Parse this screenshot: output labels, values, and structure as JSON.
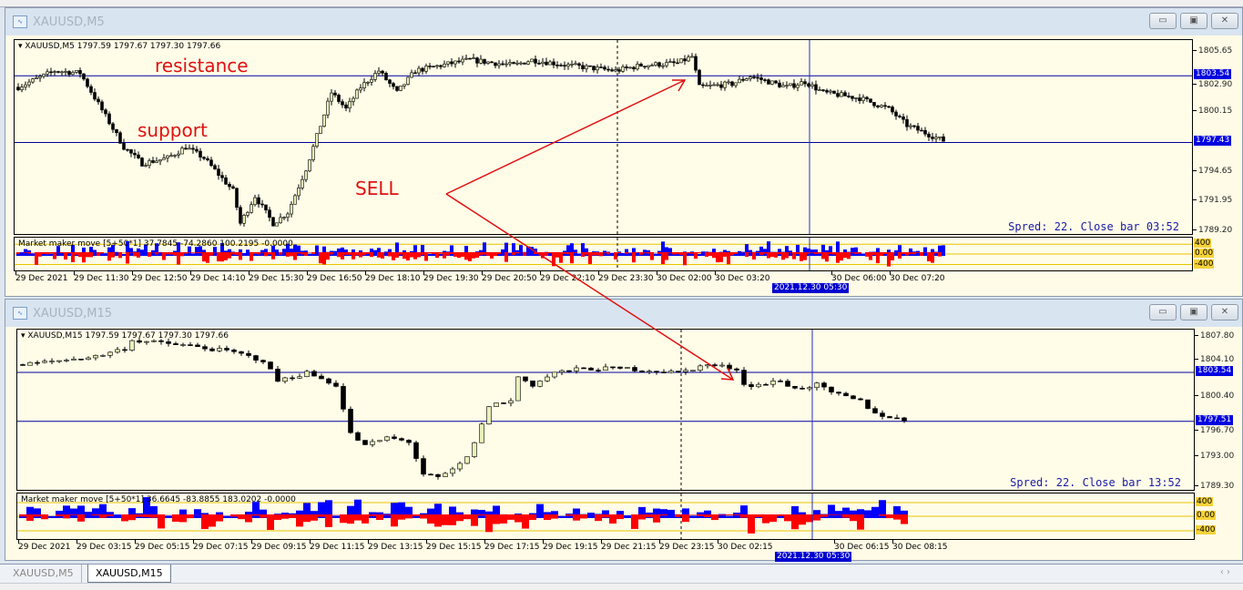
{
  "windows": [
    {
      "title": "XAUUSD,M5",
      "header": "XAUUSD,M5  1797.59 1797.67 1797.30 1797.66",
      "price_ticks": [
        "1805.65",
        "1802.90",
        "1800.15",
        "1794.65",
        "1791.95",
        "1789.20"
      ],
      "lines": [
        {
          "price": 1803.54,
          "label": "1803.54"
        },
        {
          "price": 1797.43,
          "label": "1797.43"
        }
      ],
      "spread_text": "Spred: 22. Close bar 03:52",
      "indicator_text": "Market maker move [5+50*1] 37.7845 -74.2860 100.2195 -0.0000",
      "indicator_levels": [
        "400",
        "0.00",
        "-400"
      ],
      "time_labels": [
        "29 Dec 2021",
        "29 Dec 11:30",
        "29 Dec 12:50",
        "29 Dec 14:10",
        "29 Dec 15:30",
        "29 Dec 16:50",
        "29 Dec 18:10",
        "29 Dec 19:30",
        "29 Dec 20:50",
        "29 Dec 22:10",
        "29 Dec 23:30",
        "30 Dec 02:00",
        "30 Dec 03:20",
        "30 Dec 06:00",
        "30 Dec 07:20"
      ],
      "crosshair_label": "2021.12.30 05:30"
    },
    {
      "title": "XAUUSD,M15",
      "header": "XAUUSD,M15  1797.59 1797.67 1797.30 1797.66",
      "price_ticks": [
        "1807.80",
        "1804.10",
        "1800.40",
        "1796.70",
        "1793.00",
        "1789.30"
      ],
      "lines": [
        {
          "price": 1803.54,
          "label": "1803.54"
        },
        {
          "price": 1797.51,
          "label": "1797.51"
        }
      ],
      "spread_text": "Spred: 22. Close bar 13:52",
      "indicator_text": "Market maker move [5+50*1] 36.6645 -83.8855 183.0202 -0.0000",
      "indicator_levels": [
        "400",
        "0.00",
        "-400"
      ],
      "time_labels": [
        "29 Dec 2021",
        "29 Dec 03:15",
        "29 Dec 05:15",
        "29 Dec 07:15",
        "29 Dec 09:15",
        "29 Dec 11:15",
        "29 Dec 13:15",
        "29 Dec 15:15",
        "29 Dec 17:15",
        "29 Dec 19:15",
        "29 Dec 21:15",
        "29 Dec 23:15",
        "30 Dec 02:15",
        "30 Dec 06:15",
        "30 Dec 08:15"
      ],
      "crosshair_label": "2021.12.30 05:30"
    }
  ],
  "annotations": {
    "resistance": "resistance",
    "support": "support",
    "sell": "SELL",
    "color": "#e01010"
  },
  "tabs": [
    {
      "label": "XAUUSD,M5",
      "active": false
    },
    {
      "label": "XAUUSD,M15",
      "active": true
    }
  ],
  "colors": {
    "background": "#fffce8",
    "level_line": "#0000a0",
    "bear_candle": "#000000",
    "bull_candle": "#e9efb8",
    "indicator_up": "#0000ff",
    "indicator_down": "#ff0000",
    "indicator_level": "#e8c400"
  },
  "chart_data": [
    {
      "type": "candlestick",
      "symbol": "XAUUSD",
      "timeframe": "M5",
      "ylim": [
        1789.2,
        1805.65
      ],
      "close_path": [
        [
          0,
          1802.5
        ],
        [
          10,
          1804
        ],
        [
          17,
          1803.8
        ],
        [
          29,
          1797
        ],
        [
          34,
          1795.5
        ],
        [
          41,
          1796
        ],
        [
          46,
          1797
        ],
        [
          51,
          1796
        ],
        [
          59,
          1793
        ],
        [
          61,
          1790
        ],
        [
          65,
          1792.5
        ],
        [
          70,
          1790
        ],
        [
          74,
          1791
        ],
        [
          79,
          1795
        ],
        [
          83,
          1799
        ],
        [
          86,
          1802
        ],
        [
          90,
          1800.5
        ],
        [
          94,
          1802.5
        ],
        [
          99,
          1804
        ],
        [
          104,
          1802
        ],
        [
          109,
          1804
        ],
        [
          116,
          1804.5
        ],
        [
          124,
          1805
        ],
        [
          136,
          1804.5
        ],
        [
          141,
          1805
        ],
        [
          151,
          1804.5
        ],
        [
          164,
          1804
        ],
        [
          171,
          1804.5
        ],
        [
          181,
          1804.7
        ],
        [
          185,
          1805.3
        ],
        [
          187,
          1802.5
        ],
        [
          196,
          1802.8
        ],
        [
          201,
          1803.5
        ],
        [
          211,
          1802.5
        ],
        [
          216,
          1803
        ],
        [
          221,
          1802
        ],
        [
          231,
          1801.5
        ],
        [
          239,
          1800.5
        ],
        [
          244,
          1799
        ],
        [
          254,
          1797.6
        ]
      ]
    },
    {
      "type": "candlestick",
      "symbol": "XAUUSD",
      "timeframe": "M15",
      "ylim": [
        1789.3,
        1807.8
      ],
      "close_path": [
        [
          0,
          1804.5
        ],
        [
          5,
          1805
        ],
        [
          10,
          1805.5
        ],
        [
          14,
          1806.5
        ],
        [
          15,
          1807.5
        ],
        [
          23,
          1806.8
        ],
        [
          29,
          1806
        ],
        [
          33,
          1805
        ],
        [
          35,
          1802.5
        ],
        [
          39,
          1803.5
        ],
        [
          43,
          1802
        ],
        [
          44,
          1799
        ],
        [
          45,
          1796
        ],
        [
          47,
          1794.5
        ],
        [
          50,
          1795.5
        ],
        [
          53,
          1795
        ],
        [
          55,
          1791
        ],
        [
          57,
          1790.5
        ],
        [
          59,
          1791.5
        ],
        [
          61,
          1793
        ],
        [
          63,
          1797
        ],
        [
          64,
          1799.5
        ],
        [
          67,
          1800
        ],
        [
          68,
          1803
        ],
        [
          70,
          1802
        ],
        [
          73,
          1803.5
        ],
        [
          77,
          1804
        ],
        [
          83,
          1804
        ],
        [
          90,
          1803.5
        ],
        [
          94,
          1804.5
        ],
        [
          98,
          1804
        ],
        [
          99,
          1802
        ],
        [
          101,
          1802
        ],
        [
          104,
          1802.5
        ],
        [
          106,
          1801.5
        ],
        [
          109,
          1802
        ],
        [
          111,
          1801
        ],
        [
          115,
          1800
        ],
        [
          117,
          1798.5
        ],
        [
          121,
          1797.6
        ]
      ]
    }
  ]
}
